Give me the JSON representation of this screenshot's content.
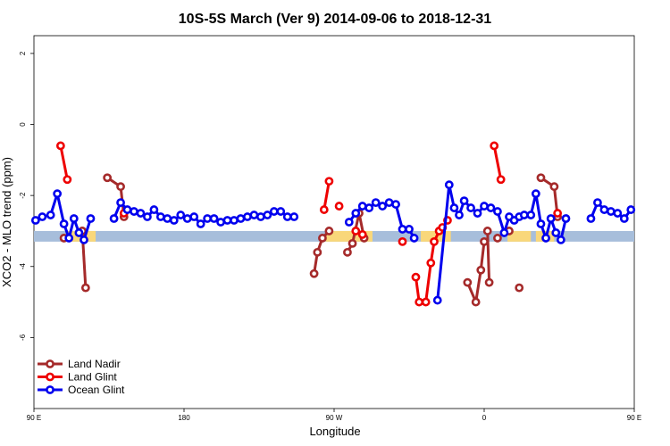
{
  "chart_data": {
    "type": "line",
    "title": "10S-5S March (Ver 9)   2014-09-06 to 2018-12-31",
    "xlabel": "Longitude",
    "ylabel": "XCO2 - MLO trend (ppm)",
    "xlim": [
      90,
      450
    ],
    "ylim": [
      -8,
      2.5
    ],
    "x_ticks": [
      {
        "value": 90,
        "label": "90 E"
      },
      {
        "value": 180,
        "label": "180"
      },
      {
        "value": 270,
        "label": "90 W"
      },
      {
        "value": 360,
        "label": "0"
      },
      {
        "value": 450,
        "label": "90 E"
      },
      {
        "value": 540,
        "label": "180"
      }
    ],
    "y_ticks": [
      {
        "value": 2,
        "label": "2"
      },
      {
        "value": 0,
        "label": "0"
      },
      {
        "value": -2,
        "label": "-2"
      },
      {
        "value": -4,
        "label": "-4"
      },
      {
        "value": -6,
        "label": "-6"
      }
    ],
    "legend_position": "bottom-left",
    "background_band": {
      "y_from": -3.3,
      "y_to": -3.0,
      "ocean_color": "#a7bedb",
      "land_color": "#f9d77a"
    },
    "series": [
      {
        "name": "Land Nadir",
        "color": "#a52a2a",
        "segments": [
          [
            [
              108,
              -3.2
            ]
          ],
          [
            [
              119,
              -3.0
            ],
            [
              121,
              -4.6
            ]
          ],
          [
            [
              134,
              -1.5
            ],
            [
              142,
              -1.75
            ],
            [
              144,
              -2.6
            ]
          ],
          [
            [
              258,
              -4.2
            ],
            [
              260,
              -3.6
            ],
            [
              263,
              -3.2
            ],
            [
              267,
              -3.0
            ]
          ],
          [
            [
              278,
              -3.6
            ],
            [
              281,
              -3.35
            ],
            [
              285,
              -2.5
            ],
            [
              288,
              -3.2
            ]
          ],
          [
            [
              350,
              -4.45
            ],
            [
              355,
              -5.0
            ],
            [
              358,
              -4.1
            ],
            [
              360,
              -3.3
            ]
          ],
          [
            [
              362,
              -3.0
            ],
            [
              363,
              -4.45
            ]
          ],
          [
            [
              368,
              -3.2
            ]
          ],
          [
            [
              375,
              -3.0
            ]
          ],
          [
            [
              381,
              -4.6
            ]
          ],
          [
            [
              394,
              -1.5
            ],
            [
              402,
              -1.75
            ],
            [
              404,
              -2.6
            ]
          ]
        ]
      },
      {
        "name": "Land Glint",
        "color": "#ee0000",
        "segments": [
          [
            [
              106,
              -0.6
            ],
            [
              110,
              -1.55
            ]
          ],
          [
            [
              144,
              -2.5
            ]
          ],
          [
            [
              264,
              -2.4
            ],
            [
              267,
              -1.6
            ]
          ],
          [
            [
              273,
              -2.3
            ]
          ],
          [
            [
              283,
              -3.0
            ],
            [
              287,
              -3.1
            ]
          ],
          [
            [
              311,
              -3.3
            ]
          ],
          [
            [
              319,
              -4.3
            ],
            [
              321,
              -5.0
            ],
            [
              325,
              -5.0
            ],
            [
              328,
              -3.9
            ],
            [
              330,
              -3.3
            ],
            [
              333,
              -3.0
            ],
            [
              335,
              -2.9
            ],
            [
              338,
              -2.7
            ]
          ],
          [
            [
              366,
              -0.6
            ],
            [
              370,
              -1.55
            ]
          ],
          [
            [
              404,
              -2.5
            ]
          ]
        ]
      },
      {
        "name": "Ocean Glint",
        "color": "#0000ee",
        "segments": [
          [
            [
              91,
              -2.7
            ],
            [
              95,
              -2.6
            ],
            [
              100,
              -2.55
            ],
            [
              104,
              -1.95
            ],
            [
              108,
              -2.8
            ],
            [
              111,
              -3.2
            ],
            [
              114,
              -2.65
            ],
            [
              117,
              -3.05
            ],
            [
              120,
              -3.25
            ],
            [
              124,
              -2.65
            ]
          ],
          [
            [
              138,
              -2.65
            ],
            [
              142,
              -2.2
            ],
            [
              146,
              -2.4
            ],
            [
              150,
              -2.45
            ],
            [
              154,
              -2.5
            ],
            [
              158,
              -2.6
            ],
            [
              162,
              -2.4
            ],
            [
              166,
              -2.6
            ],
            [
              170,
              -2.65
            ],
            [
              174,
              -2.7
            ],
            [
              178,
              -2.55
            ],
            [
              182,
              -2.65
            ],
            [
              186,
              -2.6
            ],
            [
              190,
              -2.8
            ],
            [
              194,
              -2.65
            ],
            [
              198,
              -2.65
            ],
            [
              202,
              -2.75
            ],
            [
              206,
              -2.7
            ],
            [
              210,
              -2.7
            ],
            [
              214,
              -2.65
            ],
            [
              218,
              -2.6
            ],
            [
              222,
              -2.55
            ],
            [
              226,
              -2.6
            ],
            [
              230,
              -2.55
            ],
            [
              234,
              -2.45
            ],
            [
              238,
              -2.45
            ],
            [
              242,
              -2.6
            ],
            [
              246,
              -2.6
            ]
          ],
          [
            [
              279,
              -2.75
            ],
            [
              283,
              -2.5
            ],
            [
              287,
              -2.3
            ],
            [
              291,
              -2.35
            ],
            [
              295,
              -2.2
            ],
            [
              299,
              -2.3
            ],
            [
              303,
              -2.2
            ],
            [
              307,
              -2.25
            ],
            [
              311,
              -2.95
            ],
            [
              315,
              -2.95
            ],
            [
              318,
              -3.2
            ]
          ],
          [
            [
              332,
              -4.95
            ],
            [
              339,
              -1.7
            ],
            [
              342,
              -2.35
            ],
            [
              345,
              -2.55
            ],
            [
              348,
              -2.15
            ],
            [
              352,
              -2.35
            ],
            [
              356,
              -2.5
            ],
            [
              360,
              -2.3
            ],
            [
              364,
              -2.35
            ],
            [
              368,
              -2.45
            ],
            [
              372,
              -3.05
            ],
            [
              375,
              -2.6
            ],
            [
              378,
              -2.7
            ],
            [
              381,
              -2.6
            ],
            [
              384,
              -2.55
            ],
            [
              388,
              -2.55
            ],
            [
              391,
              -1.95
            ],
            [
              394,
              -2.8
            ],
            [
              397,
              -3.2
            ],
            [
              400,
              -2.65
            ],
            [
              403,
              -3.05
            ],
            [
              406,
              -3.25
            ],
            [
              409,
              -2.65
            ]
          ],
          [
            [
              424,
              -2.65
            ],
            [
              428,
              -2.2
            ],
            [
              432,
              -2.4
            ],
            [
              436,
              -2.45
            ],
            [
              440,
              -2.5
            ],
            [
              444,
              -2.65
            ],
            [
              448,
              -2.4
            ]
          ]
        ]
      }
    ]
  }
}
